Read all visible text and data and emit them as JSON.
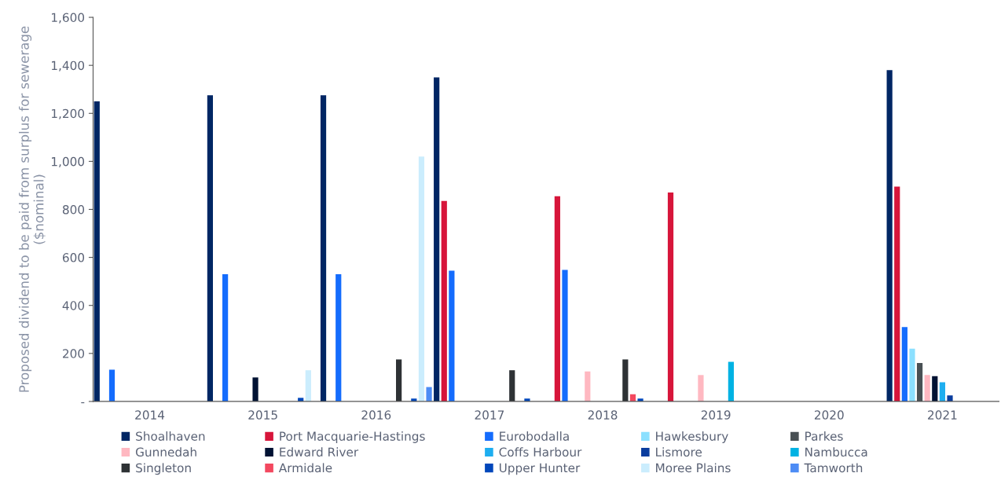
{
  "chart_data": {
    "type": "bar",
    "ylabel": "Proposed dividend to be paid from surplus for sewerage\n($nominal)",
    "categories": [
      "2014",
      "2015",
      "2016",
      "2017",
      "2018",
      "2019",
      "2020",
      "2021"
    ],
    "ylim": [
      0,
      1600
    ],
    "yticks": [
      {
        "value": 0,
        "label": "-"
      },
      {
        "value": 200,
        "label": "200"
      },
      {
        "value": 400,
        "label": "400"
      },
      {
        "value": 600,
        "label": "600"
      },
      {
        "value": 800,
        "label": "800"
      },
      {
        "value": 1000,
        "label": "1,000"
      },
      {
        "value": 1200,
        "label": "1,200"
      },
      {
        "value": 1400,
        "label": "1,400"
      },
      {
        "value": 1600,
        "label": "1,600"
      }
    ],
    "grid": false,
    "legend": "bottom",
    "series": [
      {
        "name": "Shoalhaven",
        "color": "#002664",
        "values": [
          1250,
          1275,
          1275,
          1350,
          null,
          null,
          null,
          1380
        ]
      },
      {
        "name": "Port Macquarie-Hastings",
        "color": "#d7153a",
        "values": [
          null,
          null,
          null,
          835,
          855,
          870,
          null,
          895
        ]
      },
      {
        "name": "Eurobodalla",
        "color": "#146cfd",
        "values": [
          132,
          530,
          530,
          545,
          548,
          null,
          null,
          310
        ]
      },
      {
        "name": "Hawkesbury",
        "color": "#8ce0ff",
        "values": [
          null,
          null,
          null,
          null,
          null,
          null,
          null,
          220
        ]
      },
      {
        "name": "Parkes",
        "color": "#495054",
        "values": [
          null,
          null,
          null,
          null,
          null,
          null,
          null,
          160
        ]
      },
      {
        "name": "Gunnedah",
        "color": "#ffb8c1",
        "values": [
          null,
          null,
          null,
          null,
          125,
          110,
          null,
          110
        ]
      },
      {
        "name": "Edward River",
        "color": "#001233",
        "values": [
          null,
          100,
          null,
          null,
          null,
          null,
          null,
          105
        ]
      },
      {
        "name": "Coffs Harbour",
        "color": "#1eaef0",
        "values": [
          null,
          null,
          null,
          null,
          null,
          null,
          null,
          80
        ]
      },
      {
        "name": "Lismore",
        "color": "#0a3d9e",
        "values": [
          null,
          null,
          null,
          null,
          null,
          null,
          null,
          25
        ]
      },
      {
        "name": "Nambucca",
        "color": "#00b2e3",
        "values": [
          null,
          null,
          null,
          null,
          null,
          165,
          null,
          null
        ]
      },
      {
        "name": "Singleton",
        "color": "#2e3235",
        "values": [
          null,
          null,
          175,
          130,
          175,
          null,
          null,
          null
        ]
      },
      {
        "name": "Armidale",
        "color": "#f3485f",
        "values": [
          null,
          null,
          null,
          null,
          30,
          null,
          null,
          null
        ]
      },
      {
        "name": "Upper Hunter",
        "color": "#0047bb",
        "values": [
          null,
          15,
          12,
          12,
          12,
          null,
          null,
          null
        ]
      },
      {
        "name": "Moree Plains",
        "color": "#cbedfd",
        "values": [
          null,
          130,
          1020,
          null,
          null,
          null,
          null,
          null
        ]
      },
      {
        "name": "Tamworth",
        "color": "#4d8cf5",
        "values": [
          null,
          null,
          60,
          null,
          null,
          null,
          null,
          null
        ]
      }
    ]
  }
}
